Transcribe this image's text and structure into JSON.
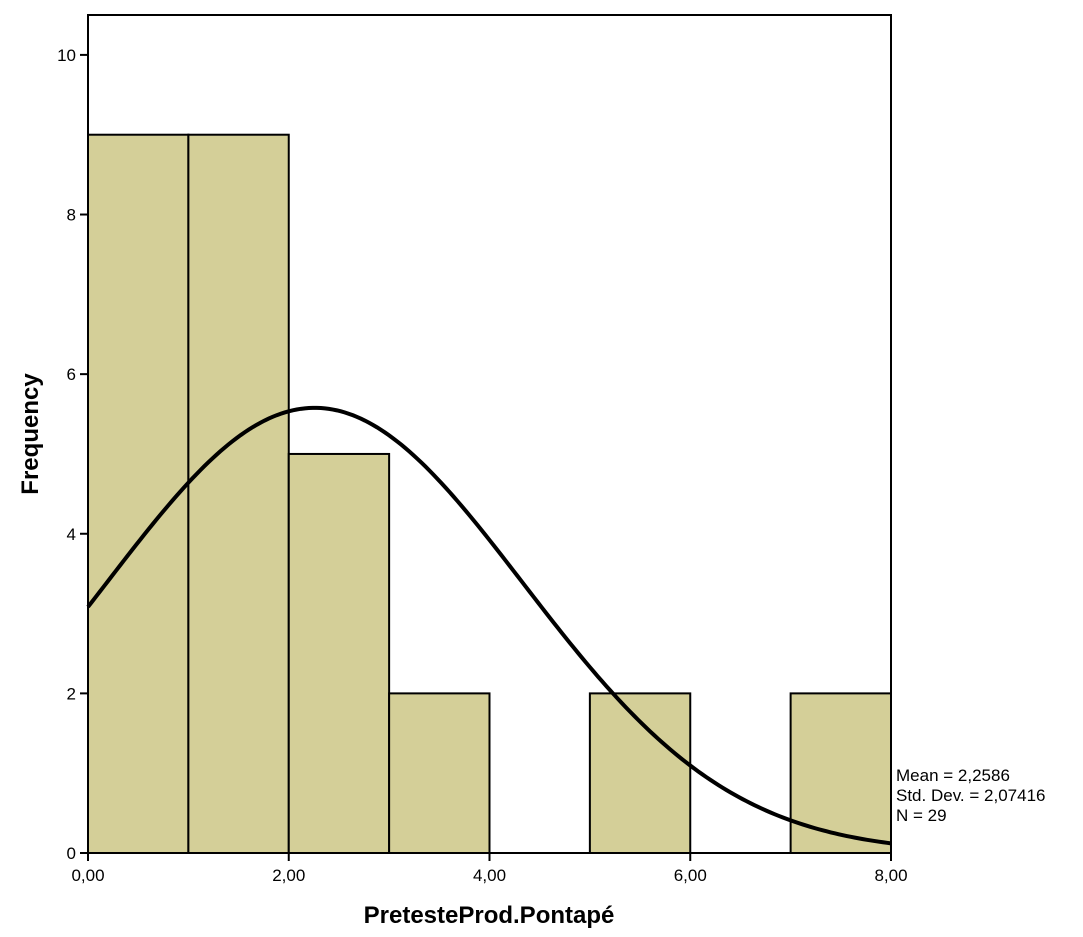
{
  "chart_data": {
    "type": "bar",
    "subtype": "histogram",
    "bins": [
      {
        "x0": 0,
        "x1": 1,
        "count": 9
      },
      {
        "x0": 1,
        "x1": 2,
        "count": 9
      },
      {
        "x0": 2,
        "x1": 3,
        "count": 5
      },
      {
        "x0": 3,
        "x1": 4,
        "count": 2
      },
      {
        "x0": 4,
        "x1": 5,
        "count": 0
      },
      {
        "x0": 5,
        "x1": 6,
        "count": 2
      },
      {
        "x0": 6,
        "x1": 7,
        "count": 0
      },
      {
        "x0": 7,
        "x1": 8,
        "count": 2
      }
    ],
    "normal_curve": {
      "mean": 2.2586,
      "std_dev": 2.07416,
      "n": 29,
      "bin_width": 1
    },
    "xlabel": "PretesteProd.Pontapé",
    "ylabel": "Frequency",
    "xlim": [
      0,
      8
    ],
    "ylim": [
      0,
      10.5
    ],
    "x_ticks": [
      "0,00",
      "2,00",
      "4,00",
      "6,00",
      "8,00"
    ],
    "x_tick_values": [
      0,
      2,
      4,
      6,
      8
    ],
    "y_ticks": [
      "0",
      "2",
      "4",
      "6",
      "8",
      "10"
    ],
    "y_tick_values": [
      0,
      2,
      4,
      6,
      8,
      10
    ],
    "stats": {
      "mean": "Mean = 2,2586",
      "std_dev": "Std. Dev. = 2,07416",
      "n": "N = 29"
    },
    "grid": false,
    "colors": {
      "bar_fill": "#d4cf98",
      "bar_stroke": "#000000",
      "curve": "#000000"
    }
  }
}
